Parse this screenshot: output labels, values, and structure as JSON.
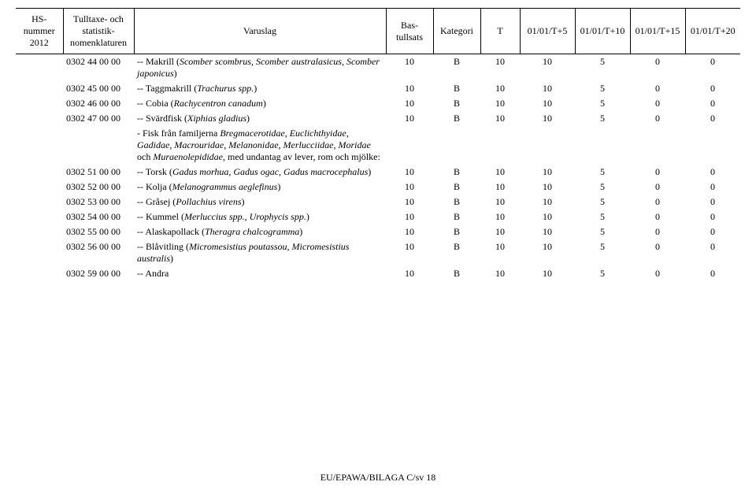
{
  "header": {
    "hs1": "HS-",
    "hs2": "nummer",
    "hs3": "2012",
    "stat1": "Tulltaxe- och",
    "stat2": "statistik-",
    "stat3": "nomenklaturen",
    "varuslag": "Varuslag",
    "bas1": "Bas-",
    "bas2": "tullsats",
    "kategori": "Kategori",
    "t": "T",
    "c5": "01/01/T+5",
    "c10": "01/01/T+10",
    "c15": "01/01/T+15",
    "c20": "01/01/T+20"
  },
  "rows": [
    {
      "stat": "0302 44 00 00",
      "desc": "-- Makrill (<i>Scomber scombrus, Scomber australasicus, Scomber japonicus</i>)",
      "bas": "10",
      "kat": "B",
      "t": "10",
      "v5": "10",
      "v10": "5",
      "v15": "0",
      "v20": "0"
    },
    {
      "stat": "0302 45 00 00",
      "desc": "-- Taggmakrill (<i>Trachurus spp.</i>)",
      "bas": "10",
      "kat": "B",
      "t": "10",
      "v5": "10",
      "v10": "5",
      "v15": "0",
      "v20": "0"
    },
    {
      "stat": "0302 46 00 00",
      "desc": "-- Cobia (<i>Rachycentron canadum</i>)",
      "bas": "10",
      "kat": "B",
      "t": "10",
      "v5": "10",
      "v10": "5",
      "v15": "0",
      "v20": "0"
    },
    {
      "stat": "0302 47 00 00",
      "desc": "-- Svärdfisk (<i>Xiphias gladius</i>)",
      "bas": "10",
      "kat": "B",
      "t": "10",
      "v5": "10",
      "v10": "5",
      "v15": "0",
      "v20": "0"
    },
    {
      "stat": "",
      "desc": "- Fisk från familjerna <i>Bregmacerotidae, Euclichthyidae, Gadidae, Macrouridae, Melanonidae, Merlucciidae, Moridae</i> och <i>Muraenolepididae</i>, med undantag av lever, rom och mjölke:",
      "bas": "",
      "kat": "",
      "t": "",
      "v5": "",
      "v10": "",
      "v15": "",
      "v20": ""
    },
    {
      "stat": "0302 51 00 00",
      "desc": "-- Torsk (<i>Gadus morhua, Gadus ogac, Gadus macrocephalus</i>)",
      "bas": "10",
      "kat": "B",
      "t": "10",
      "v5": "10",
      "v10": "5",
      "v15": "0",
      "v20": "0"
    },
    {
      "stat": "0302 52 00 00",
      "desc": "-- Kolja (<i>Melanogrammus aeglefinus</i>)",
      "bas": "10",
      "kat": "B",
      "t": "10",
      "v5": "10",
      "v10": "5",
      "v15": "0",
      "v20": "0"
    },
    {
      "stat": "0302 53 00 00",
      "desc": "-- Gråsej (<i>Pollachius virens</i>)",
      "bas": "10",
      "kat": "B",
      "t": "10",
      "v5": "10",
      "v10": "5",
      "v15": "0",
      "v20": "0"
    },
    {
      "stat": "0302 54 00 00",
      "desc": "-- Kummel (<i>Merluccius spp., Urophycis spp.</i>)",
      "bas": "10",
      "kat": "B",
      "t": "10",
      "v5": "10",
      "v10": "5",
      "v15": "0",
      "v20": "0"
    },
    {
      "stat": "0302 55 00 00",
      "desc": "-- Alaskapollack (<i>Theragra chalcogramma</i>)",
      "bas": "10",
      "kat": "B",
      "t": "10",
      "v5": "10",
      "v10": "5",
      "v15": "0",
      "v20": "0"
    },
    {
      "stat": "0302 56 00 00",
      "desc": "-- Blåvitling (<i>Micromesistius poutassou, Micromesistius australis</i>)",
      "bas": "10",
      "kat": "B",
      "t": "10",
      "v5": "10",
      "v10": "5",
      "v15": "0",
      "v20": "0"
    },
    {
      "stat": "0302 59 00 00",
      "desc": "-- Andra",
      "bas": "10",
      "kat": "B",
      "t": "10",
      "v5": "10",
      "v10": "5",
      "v15": "0",
      "v20": "0"
    }
  ],
  "footer": "EU/EPAWA/BILAGA C/sv 18"
}
